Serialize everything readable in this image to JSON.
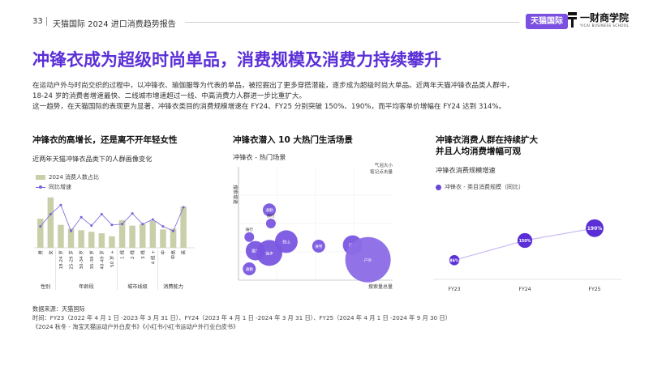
{
  "header": {
    "page_number": "33",
    "report_title": "天猫国际 2024 进口消费趋势报告",
    "tmall_badge": "天猫国际",
    "cbs_name": "一财商学院",
    "cbs_sub": "YICAI BUSINESS SCHOOL"
  },
  "main_title": "冲锋衣成为超级时尚单品，消费规模及消费力持续攀升",
  "intro": [
    "在运动户外与时尚交织的过程中，以冲锋衣、瑜伽服等为代表的单品，被挖掘出了更多穿搭潜能，逐步成为超级时尚大单品。近两年天猫冲锋衣品类人群中，",
    "18-24 岁的消费者增速最快、二线城市增速超过一线、中高消费力人群进一步比重扩大。",
    "这一趋势，在天猫国际的表现更为显著，冲锋衣类目的消费规模增速在 FY24、FY25 分别突破 150%、190%，而平均客单价增幅在 FY24 达到 314%。"
  ],
  "panel1": {
    "title": "冲锋衣的高增长，还是离不开年轻女性",
    "subtitle": "近两年天猫冲锋衣品类下的人群画像变化",
    "legend_bar": "2024 消费人数占比",
    "legend_line": "同比增速"
  },
  "panel2": {
    "title": "冲锋衣潜入 10 大热门生活场景",
    "subtitle": "冲锋衣 - 热门场景"
  },
  "panel3": {
    "title_line1": "冲锋衣消费人群在持续扩大",
    "title_line2": "并且人均消费增幅可观",
    "subtitle": "冲锋衣消费规模增速",
    "legend": "冲锋衣 - 类目消费规模（同比）"
  },
  "sources": [
    "数据来源：天猫国际",
    "时间：FY23（2022 年 4 月 1 日 -2023 年 3 月 31 日）、FY24（2023 年 4 月 1 日 -2024 年 3 月 31 日）、FY25（2024 年 4 月 1 日 -2024 年 9 月 30 日）",
    "《2024 秋冬 - 淘宝天猫运动户外白皮书》《小红书小红书运动户外行业白皮书》"
  ],
  "chart_data": [
    {
      "type": "bar",
      "title": "冲锋衣的高增长，还是离不开年轻女性",
      "subtitle": "近两年天猫冲锋衣品类下的人群画像变化",
      "categories": [
        "男",
        "女",
        "18-24 岁",
        "25-29 岁",
        "30-34 岁",
        "35-39 岁",
        "40-49 岁",
        "50 岁 +",
        "1 线",
        "2 线",
        "3 线",
        "4 线 +",
        "中",
        "中高",
        "高"
      ],
      "groups": [
        {
          "label": "性别",
          "count": 2
        },
        {
          "label": "年龄段",
          "count": 6
        },
        {
          "label": "城市线级",
          "count": 4
        },
        {
          "label": "消费能力",
          "count": 3
        }
      ],
      "series": [
        {
          "name": "2024 消费人数占比",
          "type": "bar",
          "color": "#c9cfa9",
          "values": [
            38,
            66,
            30,
            25,
            23,
            21,
            19,
            15,
            36,
            29,
            31,
            35,
            24,
            25,
            54
          ]
        },
        {
          "name": "同比增速",
          "type": "line",
          "color": "#7b61d9",
          "values": [
            28,
            44,
            56,
            22,
            40,
            29,
            44,
            30,
            31,
            45,
            31,
            37,
            28,
            22,
            53
          ]
        }
      ]
    },
    {
      "type": "scatter",
      "title": "冲锋衣潜入 10 大热门生活场景",
      "subtitle": "冲锋衣 - 热门场景",
      "xlabel": "搜索量总量",
      "ylabel": "搜索增速",
      "corner_label_line1": "气泡大小",
      "corner_label_line2": "笔记点击量",
      "points": [
        {
          "label": "通勤",
          "x": 20,
          "y": 62,
          "size": 8
        },
        {
          "label": "旅行",
          "x": 21,
          "y": 50,
          "size": 6
        },
        {
          "label": "骑行",
          "x": 7,
          "y": 38,
          "size": 6
        },
        {
          "label": "露营",
          "x": 11,
          "y": 26,
          "size": 12
        },
        {
          "label": "徒步",
          "x": 20,
          "y": 24,
          "size": 16
        },
        {
          "label": "登山",
          "x": 31,
          "y": 34,
          "size": 14
        },
        {
          "label": "滑雪",
          "x": 52,
          "y": 30,
          "size": 8
        },
        {
          "label": "日常",
          "x": 74,
          "y": 31,
          "size": 12
        },
        {
          "label": "户外",
          "x": 84,
          "y": 18,
          "size": 28
        },
        {
          "label": "通勤",
          "x": 7,
          "y": 10,
          "size": 8
        }
      ]
    },
    {
      "type": "line",
      "title": "冲锋衣消费人群在持续扩大 并且人均消费增幅可观",
      "subtitle": "冲锋衣消费规模增速",
      "categories": [
        "FY23",
        "FY24",
        "FY25"
      ],
      "series": [
        {
          "name": "冲锋衣 - 类目消费规模（同比）",
          "values": [
            86,
            150,
            190
          ],
          "labels": [
            "86%",
            "150%",
            "190%"
          ]
        }
      ]
    }
  ]
}
